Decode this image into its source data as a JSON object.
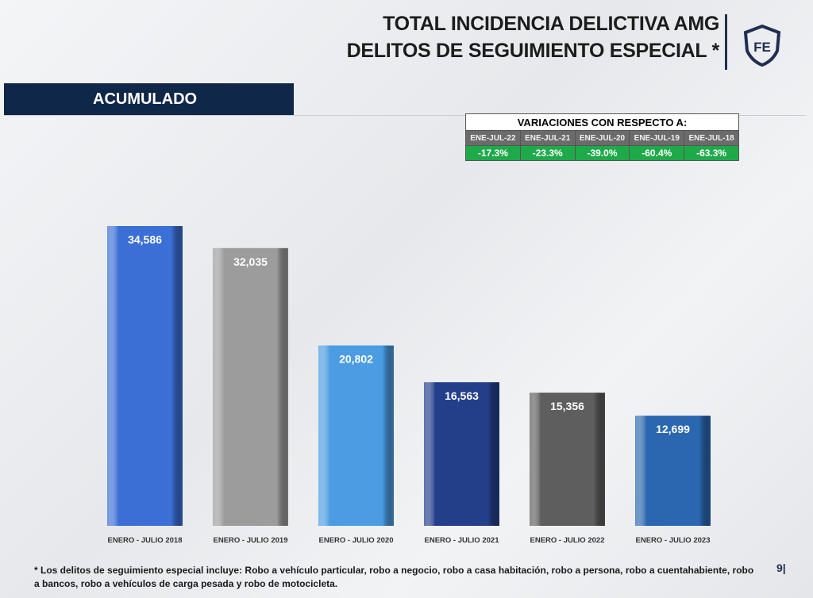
{
  "header": {
    "title_line1": "TOTAL INCIDENCIA DELICTIVA AMG",
    "title_line2": "DELITOS DE SEGUIMIENTO ESPECIAL *",
    "logo_text": "FE"
  },
  "section_label": "ACUMULADO",
  "variations": {
    "title": "VARIACIONES CON RESPECTO A:",
    "periods": [
      "ENE-JUL-22",
      "ENE-JUL-21",
      "ENE-JUL-20",
      "ENE-JUL-19",
      "ENE-JUL-18"
    ],
    "values": [
      "-17.3%",
      "-23.3%",
      "-39.0%",
      "-60.4%",
      "-63.3%"
    ],
    "color": "#1faa4a"
  },
  "chart_data": {
    "type": "bar",
    "categories": [
      "ENERO - JULIO 2018",
      "ENERO - JULIO 2019",
      "ENERO - JULIO 2020",
      "ENERO - JULIO 2021",
      "ENERO - JULIO 2022",
      "ENERO - JULIO 2023"
    ],
    "values": [
      34586,
      32035,
      20802,
      16563,
      15356,
      12699
    ],
    "labels": [
      "34,586",
      "32,035",
      "20,802",
      "16,563",
      "15,356",
      "12,699"
    ],
    "colors": [
      "#3b6fd6",
      "#9c9c9c",
      "#4b9ce2",
      "#243f8a",
      "#5e5e5e",
      "#2a67b0"
    ],
    "ylim": [
      0,
      34586
    ],
    "grid": false
  },
  "footnote": "* Los delitos de seguimiento especial incluye: Robo a vehículo particular, robo a negocio, robo a casa habitación, robo a persona, robo a cuentahabiente, robo a bancos, robo a vehículos de carga pesada y robo de motocicleta.",
  "page_number": "9|"
}
